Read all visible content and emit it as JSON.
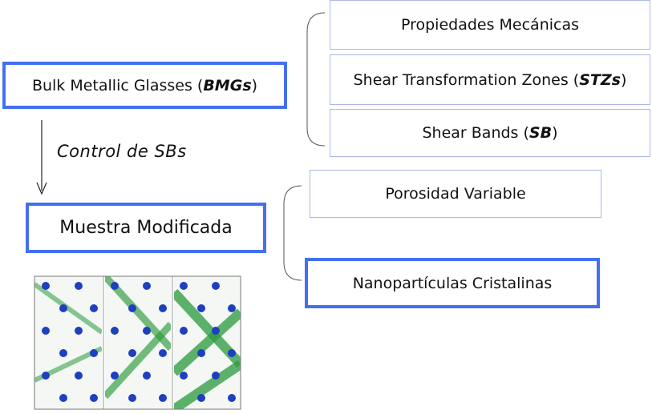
{
  "main_box": {
    "prefix": "Bulk Metallic Glasses (",
    "acronym": "BMGs",
    "suffix": ")"
  },
  "arrow_label": "Control de SBs",
  "modified_box": "Muestra Modificada",
  "top_group": [
    {
      "text": "Propiedades Mecánicas"
    },
    {
      "prefix": "Shear Transformation Zones (",
      "acronym": "STZs",
      "suffix": ")"
    },
    {
      "prefix": "Shear Bands (",
      "acronym": "SB",
      "suffix": ")"
    }
  ],
  "bottom_group": [
    {
      "text": "Porosidad Variable"
    },
    {
      "text": "Nanopartículas Cristalinas"
    }
  ],
  "colors": {
    "box_border_thick": "#4470f0",
    "box_border_thin": "#a9b8e6",
    "particles": "#1f3fbf",
    "shear_bands": "#2a9a3c"
  }
}
